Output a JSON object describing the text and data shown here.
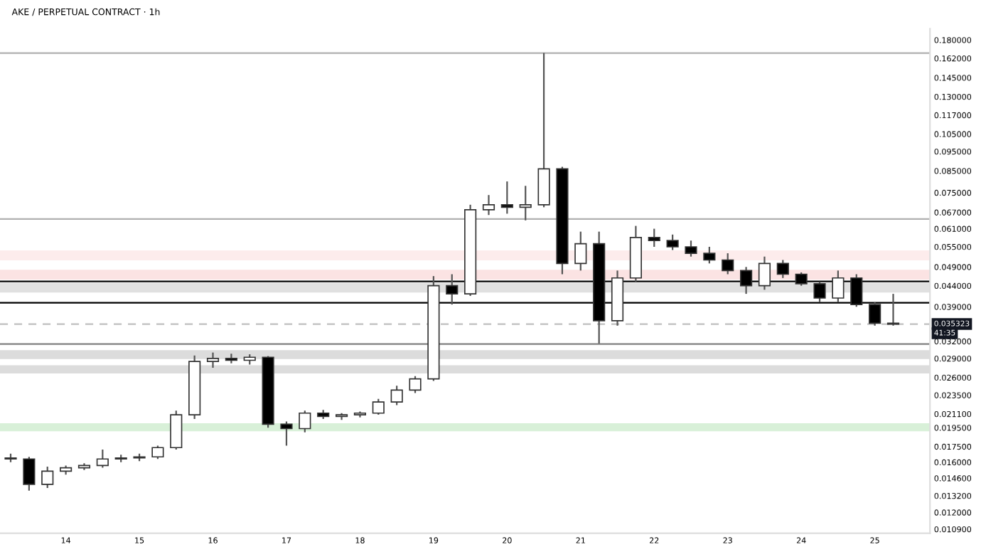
{
  "chart_data": {
    "type": "candlestick",
    "title": "AKE / PERPETUAL CONTRACT · 1h",
    "x": [
      13.25,
      13.5,
      13.75,
      14.0,
      14.25,
      14.5,
      14.75,
      15.0,
      15.25,
      15.5,
      15.75,
      16.0,
      16.25,
      16.5,
      16.75,
      17.0,
      17.25,
      17.5,
      17.75,
      18.0,
      18.25,
      18.5,
      18.75,
      19.0,
      19.25,
      19.5,
      19.75,
      20.0,
      20.25,
      20.5,
      20.75,
      21.0,
      21.25,
      21.5,
      21.75,
      22.0,
      22.25,
      22.5,
      22.75,
      23.0,
      23.25,
      23.5,
      23.75,
      24.0,
      24.25,
      24.5,
      24.75,
      25.0,
      25.25
    ],
    "ohlc": [
      [
        0.0164,
        0.0168,
        0.016,
        0.0163
      ],
      [
        0.0163,
        0.0165,
        0.0136,
        0.0141
      ],
      [
        0.0141,
        0.0156,
        0.0138,
        0.0152
      ],
      [
        0.0152,
        0.0157,
        0.0149,
        0.0155
      ],
      [
        0.0155,
        0.0159,
        0.0153,
        0.0157
      ],
      [
        0.0157,
        0.0172,
        0.0155,
        0.0163
      ],
      [
        0.0163,
        0.0167,
        0.016,
        0.0164
      ],
      [
        0.0164,
        0.0168,
        0.0161,
        0.0165
      ],
      [
        0.0165,
        0.0176,
        0.0163,
        0.0174
      ],
      [
        0.0174,
        0.0215,
        0.0172,
        0.021
      ],
      [
        0.021,
        0.0295,
        0.0205,
        0.0285
      ],
      [
        0.0285,
        0.03,
        0.0275,
        0.029
      ],
      [
        0.029,
        0.0298,
        0.0282,
        0.0287
      ],
      [
        0.0287,
        0.0297,
        0.028,
        0.0292
      ],
      [
        0.0292,
        0.0294,
        0.0195,
        0.0199
      ],
      [
        0.0199,
        0.0202,
        0.0176,
        0.0194
      ],
      [
        0.0194,
        0.0215,
        0.019,
        0.0212
      ],
      [
        0.0212,
        0.0216,
        0.0205,
        0.0208
      ],
      [
        0.0208,
        0.0212,
        0.0204,
        0.021
      ],
      [
        0.021,
        0.0214,
        0.0207,
        0.0212
      ],
      [
        0.0212,
        0.023,
        0.021,
        0.0226
      ],
      [
        0.0226,
        0.0248,
        0.0222,
        0.0242
      ],
      [
        0.0242,
        0.0262,
        0.0238,
        0.0258
      ],
      [
        0.0258,
        0.0465,
        0.0255,
        0.044
      ],
      [
        0.044,
        0.047,
        0.0395,
        0.042
      ],
      [
        0.042,
        0.07,
        0.0415,
        0.068
      ],
      [
        0.068,
        0.074,
        0.066,
        0.07
      ],
      [
        0.07,
        0.08,
        0.0665,
        0.069
      ],
      [
        0.069,
        0.078,
        0.064,
        0.07
      ],
      [
        0.07,
        0.167,
        0.069,
        0.086
      ],
      [
        0.086,
        0.087,
        0.047,
        0.05
      ],
      [
        0.05,
        0.06,
        0.048,
        0.056
      ],
      [
        0.056,
        0.06,
        0.0316,
        0.036
      ],
      [
        0.036,
        0.048,
        0.035,
        0.046
      ],
      [
        0.046,
        0.062,
        0.045,
        0.058
      ],
      [
        0.058,
        0.061,
        0.055,
        0.057
      ],
      [
        0.057,
        0.059,
        0.054,
        0.055
      ],
      [
        0.055,
        0.057,
        0.052,
        0.053
      ],
      [
        0.053,
        0.055,
        0.05,
        0.051
      ],
      [
        0.051,
        0.053,
        0.047,
        0.048
      ],
      [
        0.048,
        0.049,
        0.042,
        0.044
      ],
      [
        0.044,
        0.052,
        0.043,
        0.05
      ],
      [
        0.05,
        0.051,
        0.046,
        0.047
      ],
      [
        0.047,
        0.0475,
        0.044,
        0.0445
      ],
      [
        0.0445,
        0.045,
        0.04,
        0.041
      ],
      [
        0.041,
        0.048,
        0.04,
        0.046
      ],
      [
        0.046,
        0.047,
        0.039,
        0.0395
      ],
      [
        0.0395,
        0.04,
        0.035,
        0.0355
      ],
      [
        0.0355,
        0.042,
        0.035,
        0.0353
      ]
    ],
    "colors": [
      "#000000",
      "#000000",
      "#ffffff",
      "#ffffff",
      "#ffffff",
      "#ffffff",
      "#ffffff",
      "#ffffff",
      "#ffffff",
      "#ffffff",
      "#ffffff",
      "#ffffff",
      "#000000",
      "#ffffff",
      "#000000",
      "#000000",
      "#ffffff",
      "#000000",
      "#ffffff",
      "#ffffff",
      "#ffffff",
      "#ffffff",
      "#ffffff",
      "#ffffff",
      "#000000",
      "#ffffff",
      "#ffffff",
      "#000000",
      "#ffffff",
      "#ffffff",
      "#000000",
      "#ffffff",
      "#000000",
      "#ffffff",
      "#ffffff",
      "#000000",
      "#000000",
      "#000000",
      "#000000",
      "#000000",
      "#000000",
      "#ffffff",
      "#000000",
      "#000000",
      "#000000",
      "#ffffff",
      "#000000",
      "#000000",
      "#000000"
    ],
    "log": true,
    "xlim": [
      13.105,
      25.75
    ],
    "xticks": [
      14,
      15,
      16,
      17,
      18,
      19,
      20,
      21,
      22,
      23,
      24,
      25
    ],
    "ylim": [
      0.01065,
      0.192
    ],
    "yticks": [
      {
        "value": 0.18,
        "label": "0.180000"
      },
      {
        "value": 0.162,
        "label": "0.162000"
      },
      {
        "value": 0.145,
        "label": "0.145000"
      },
      {
        "value": 0.13,
        "label": "0.130000"
      },
      {
        "value": 0.117,
        "label": "0.117000"
      },
      {
        "value": 0.105,
        "label": "0.105000"
      },
      {
        "value": 0.095,
        "label": "0.095000"
      },
      {
        "value": 0.085,
        "label": "0.085000"
      },
      {
        "value": 0.075,
        "label": "0.075000"
      },
      {
        "value": 0.067,
        "label": "0.067000"
      },
      {
        "value": 0.061,
        "label": "0.061000"
      },
      {
        "value": 0.055,
        "label": "0.055000"
      },
      {
        "value": 0.049,
        "label": "0.049000"
      },
      {
        "value": 0.044,
        "label": "0.044000"
      },
      {
        "value": 0.039,
        "label": "0.039000"
      },
      {
        "value": 0.032,
        "label": "0.032000"
      },
      {
        "value": 0.029,
        "label": "0.029000"
      },
      {
        "value": 0.026,
        "label": "0.026000"
      },
      {
        "value": 0.0235,
        "label": "0.023500"
      },
      {
        "value": 0.0211,
        "label": "0.021100"
      },
      {
        "value": 0.0195,
        "label": "0.019500"
      },
      {
        "value": 0.0175,
        "label": "0.017500"
      },
      {
        "value": 0.016,
        "label": "0.016000"
      },
      {
        "value": 0.0146,
        "label": "0.014600"
      },
      {
        "value": 0.0132,
        "label": "0.013200"
      },
      {
        "value": 0.012,
        "label": "0.012000"
      },
      {
        "value": 0.0109,
        "label": "0.010900"
      }
    ],
    "grid": false,
    "ref_lines": [
      {
        "axis": "y",
        "value": 0.167,
        "label": null,
        "color": "#b0b0b0"
      },
      {
        "axis": "y",
        "value": 0.0645,
        "label": null,
        "color": "#b0b0b0"
      },
      {
        "axis": "y",
        "value": 0.0451,
        "label": null,
        "color": "#000000"
      },
      {
        "axis": "y",
        "value": 0.0399,
        "label": null,
        "color": "#000000"
      },
      {
        "axis": "y",
        "value": 0.0353,
        "label": null,
        "color": "#c0c0c0",
        "line_style": "dashed"
      },
      {
        "axis": "y",
        "value": 0.0315,
        "label": null,
        "color": "#808080"
      }
    ],
    "bands": [
      {
        "axis": "y",
        "from": 0.0509,
        "to": 0.0539,
        "label": null,
        "color": "#fdecec"
      },
      {
        "axis": "y",
        "from": 0.0456,
        "to": 0.0482,
        "label": null,
        "color": "#fbe3e3"
      },
      {
        "axis": "y",
        "from": 0.0423,
        "to": 0.0447,
        "label": null,
        "color": "#e0e0e0"
      },
      {
        "axis": "y",
        "from": 0.0289,
        "to": 0.0304,
        "label": null,
        "color": "#dcdcdc"
      },
      {
        "axis": "y",
        "from": 0.0266,
        "to": 0.0279,
        "label": null,
        "color": "#dcdcdc"
      },
      {
        "axis": "y",
        "from": 0.0191,
        "to": 0.02,
        "label": null,
        "color": "#d8f0d8"
      }
    ],
    "annotations": [
      {
        "text": "0.035323",
        "x": 25.75,
        "y": 0.035323
      },
      "41:35"
    ]
  }
}
